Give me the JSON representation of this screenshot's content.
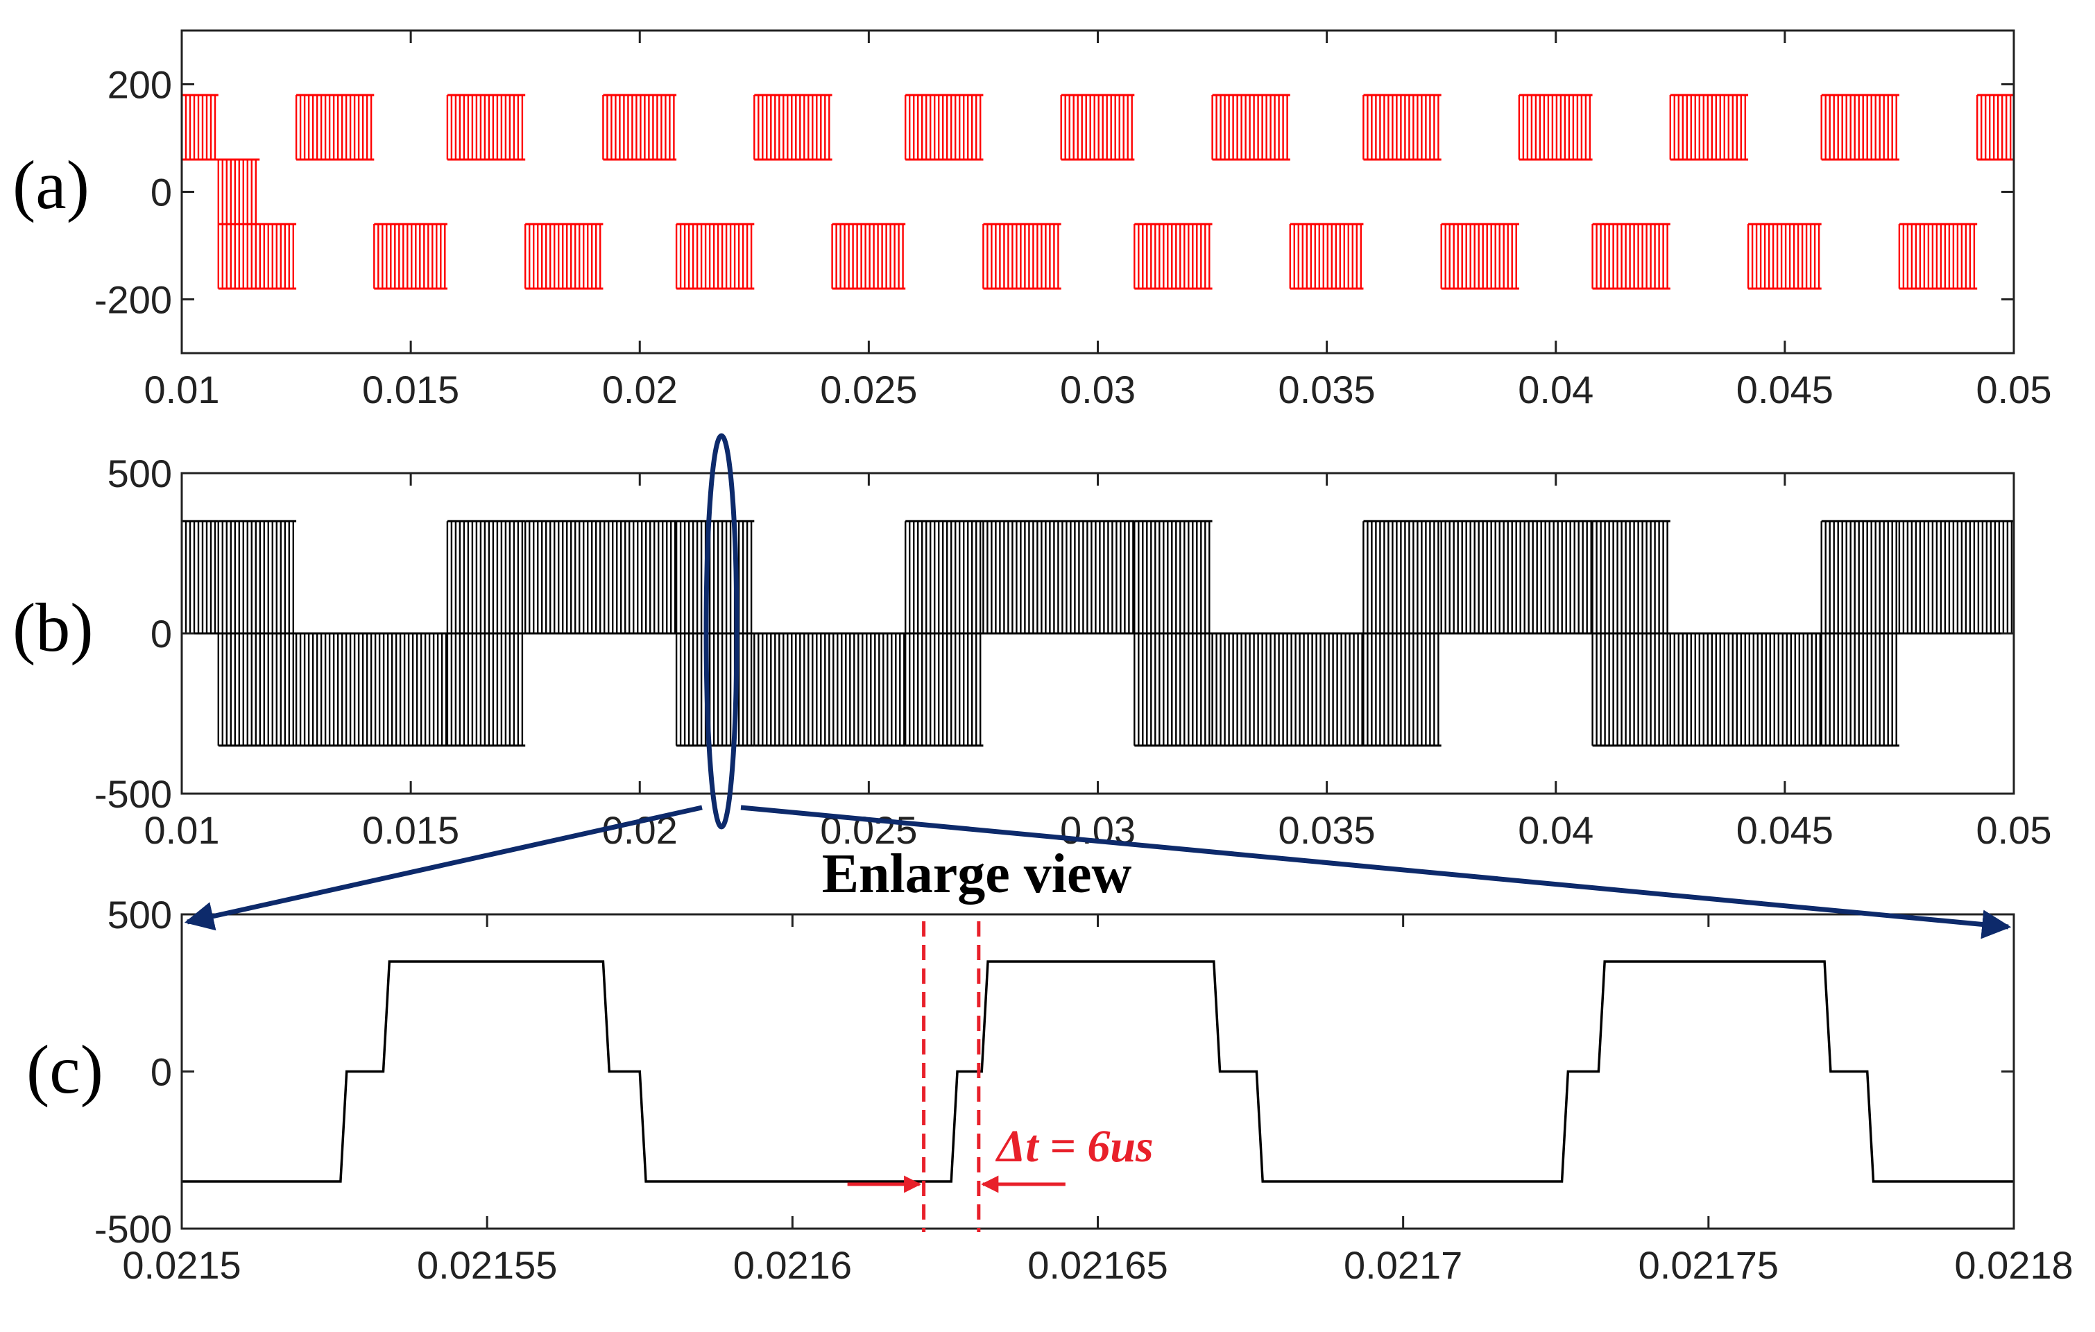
{
  "colors": {
    "panel_a_signal": "#ff0000",
    "panel_b_signal": "#000000",
    "panel_c_signal": "#000000",
    "annotation_navy": "#0d2a6b",
    "annotation_red": "#e8202a"
  },
  "annotations": {
    "enlarge_label": "Enlarge view",
    "delta_t_label": "Δt = 6us"
  },
  "chart_data": [
    {
      "type": "line",
      "panel_label": "(a)",
      "xlim": [
        0.01,
        0.05
      ],
      "ylim": [
        -300,
        300
      ],
      "x_ticks": [
        0.01,
        0.015,
        0.02,
        0.025,
        0.03,
        0.035,
        0.04,
        0.045,
        0.05
      ],
      "x_tick_labels": [
        "0.01",
        "0.015",
        "0.02",
        "0.025",
        "0.03",
        "0.035",
        "0.04",
        "0.045",
        "0.05"
      ],
      "y_ticks": [
        200,
        0,
        -200
      ],
      "y_tick_labels": [
        "200",
        "0",
        "-200"
      ],
      "grid": false,
      "waveform": "PWM switching between ±60 and ±180 levels in alternating positive/negative blocks",
      "levels": [
        180,
        60,
        -60,
        -180
      ],
      "blocks": [
        {
          "start": 0.01,
          "end": 0.0108,
          "levels": [
            60,
            180
          ]
        },
        {
          "start": 0.0108,
          "end": 0.0125,
          "levels": [
            -60,
            -180
          ]
        },
        {
          "start": 0.0108,
          "end": 0.0117,
          "levels": [
            60,
            -60
          ]
        },
        {
          "start": 0.0125,
          "end": 0.0142,
          "levels": [
            60,
            180
          ]
        },
        {
          "start": 0.0142,
          "end": 0.0158,
          "levels": [
            -60,
            -180
          ]
        },
        {
          "start": 0.0158,
          "end": 0.0175,
          "levels": [
            60,
            180
          ]
        },
        {
          "start": 0.0175,
          "end": 0.0192,
          "levels": [
            -60,
            -180
          ]
        },
        {
          "start": 0.0192,
          "end": 0.0208,
          "levels": [
            60,
            180
          ]
        },
        {
          "start": 0.0208,
          "end": 0.0225,
          "levels": [
            -60,
            -180
          ]
        },
        {
          "start": 0.0225,
          "end": 0.0242,
          "levels": [
            60,
            180
          ]
        },
        {
          "start": 0.0242,
          "end": 0.0258,
          "levels": [
            -60,
            -180
          ]
        },
        {
          "start": 0.0258,
          "end": 0.0275,
          "levels": [
            60,
            180
          ]
        },
        {
          "start": 0.0275,
          "end": 0.0292,
          "levels": [
            -60,
            -180
          ]
        },
        {
          "start": 0.0292,
          "end": 0.0308,
          "levels": [
            60,
            180
          ]
        },
        {
          "start": 0.0308,
          "end": 0.0325,
          "levels": [
            -60,
            -180
          ]
        },
        {
          "start": 0.0325,
          "end": 0.0342,
          "levels": [
            60,
            180
          ]
        },
        {
          "start": 0.0342,
          "end": 0.0358,
          "levels": [
            -60,
            -180
          ]
        },
        {
          "start": 0.0358,
          "end": 0.0375,
          "levels": [
            60,
            180
          ]
        },
        {
          "start": 0.0375,
          "end": 0.0392,
          "levels": [
            -60,
            -180
          ]
        },
        {
          "start": 0.0392,
          "end": 0.0408,
          "levels": [
            60,
            180
          ]
        },
        {
          "start": 0.0408,
          "end": 0.0425,
          "levels": [
            -60,
            -180
          ]
        },
        {
          "start": 0.0425,
          "end": 0.0442,
          "levels": [
            60,
            180
          ]
        },
        {
          "start": 0.0442,
          "end": 0.0458,
          "levels": [
            -60,
            -180
          ]
        },
        {
          "start": 0.0458,
          "end": 0.0475,
          "levels": [
            60,
            180
          ]
        },
        {
          "start": 0.0475,
          "end": 0.0492,
          "levels": [
            -60,
            -180
          ]
        },
        {
          "start": 0.0492,
          "end": 0.05,
          "levels": [
            60,
            180
          ]
        }
      ]
    },
    {
      "type": "line",
      "panel_label": "(b)",
      "xlim": [
        0.01,
        0.05
      ],
      "ylim": [
        -500,
        500
      ],
      "x_ticks": [
        0.01,
        0.015,
        0.02,
        0.025,
        0.03,
        0.035,
        0.04,
        0.045,
        0.05
      ],
      "x_tick_labels": [
        "0.01",
        "0.015",
        "0.02",
        "0.025",
        "0.03",
        "0.035",
        "0.04",
        "0.045",
        "0.05"
      ],
      "y_ticks": [
        500,
        0,
        -500
      ],
      "y_tick_labels": [
        "500",
        "0",
        "-500"
      ],
      "grid": false,
      "waveform": "PWM switching between 0 and ±350",
      "blocks": [
        {
          "start": 0.01,
          "end": 0.0108,
          "levels": [
            0,
            350
          ]
        },
        {
          "start": 0.0108,
          "end": 0.0125,
          "levels": [
            0,
            350
          ]
        },
        {
          "start": 0.0108,
          "end": 0.0125,
          "levels": [
            0,
            -350
          ]
        },
        {
          "start": 0.0125,
          "end": 0.0158,
          "levels": [
            0,
            -350
          ]
        },
        {
          "start": 0.0158,
          "end": 0.0175,
          "levels": [
            0,
            350
          ]
        },
        {
          "start": 0.0158,
          "end": 0.0175,
          "levels": [
            0,
            -350
          ]
        },
        {
          "start": 0.0175,
          "end": 0.0208,
          "levels": [
            0,
            350
          ]
        },
        {
          "start": 0.0208,
          "end": 0.0225,
          "levels": [
            0,
            350
          ]
        },
        {
          "start": 0.0208,
          "end": 0.0225,
          "levels": [
            0,
            -350
          ]
        },
        {
          "start": 0.0225,
          "end": 0.0258,
          "levels": [
            0,
            -350
          ]
        },
        {
          "start": 0.0258,
          "end": 0.0275,
          "levels": [
            0,
            350
          ]
        },
        {
          "start": 0.0258,
          "end": 0.0275,
          "levels": [
            0,
            -350
          ]
        },
        {
          "start": 0.0275,
          "end": 0.0308,
          "levels": [
            0,
            350
          ]
        },
        {
          "start": 0.0308,
          "end": 0.0325,
          "levels": [
            0,
            350
          ]
        },
        {
          "start": 0.0308,
          "end": 0.0325,
          "levels": [
            0,
            -350
          ]
        },
        {
          "start": 0.0325,
          "end": 0.0358,
          "levels": [
            0,
            -350
          ]
        },
        {
          "start": 0.0358,
          "end": 0.0375,
          "levels": [
            0,
            350
          ]
        },
        {
          "start": 0.0358,
          "end": 0.0375,
          "levels": [
            0,
            -350
          ]
        },
        {
          "start": 0.0375,
          "end": 0.0408,
          "levels": [
            0,
            350
          ]
        },
        {
          "start": 0.0408,
          "end": 0.0425,
          "levels": [
            0,
            350
          ]
        },
        {
          "start": 0.0408,
          "end": 0.0425,
          "levels": [
            0,
            -350
          ]
        },
        {
          "start": 0.0425,
          "end": 0.0458,
          "levels": [
            0,
            -350
          ]
        },
        {
          "start": 0.0458,
          "end": 0.0475,
          "levels": [
            0,
            350
          ]
        },
        {
          "start": 0.0458,
          "end": 0.0475,
          "levels": [
            0,
            -350
          ]
        },
        {
          "start": 0.0475,
          "end": 0.05,
          "levels": [
            0,
            350
          ]
        }
      ]
    },
    {
      "type": "line",
      "panel_label": "(c)",
      "xlim": [
        0.0215,
        0.0218
      ],
      "ylim": [
        -500,
        500
      ],
      "x_ticks": [
        0.0215,
        0.02155,
        0.0216,
        0.02165,
        0.0217,
        0.02175,
        0.0218
      ],
      "x_tick_labels": [
        "0.0215",
        "0.02155",
        "0.0216",
        "0.02165",
        "0.0217",
        "0.02175",
        "0.0218"
      ],
      "y_ticks": [
        500,
        0,
        -500
      ],
      "y_tick_labels": [
        "500",
        "0",
        "-500"
      ],
      "grid": false,
      "x": [
        0.0215,
        0.021526,
        0.021527,
        0.021533,
        0.021534,
        0.021569,
        0.02157,
        0.021575,
        0.021576,
        0.021626,
        0.021627,
        0.021631,
        0.021632,
        0.021669,
        0.02167,
        0.021676,
        0.021677,
        0.021726,
        0.021727,
        0.021732,
        0.021733,
        0.021769,
        0.02177,
        0.021776,
        0.021777,
        0.0218
      ],
      "y": [
        -350,
        -350,
        0,
        0,
        350,
        350,
        0,
        0,
        -350,
        -350,
        0,
        0,
        350,
        350,
        0,
        0,
        -350,
        -350,
        0,
        0,
        350,
        350,
        0,
        0,
        -350,
        -350
      ],
      "dashed_markers_x": [
        0.0216215,
        0.0216305
      ]
    }
  ]
}
